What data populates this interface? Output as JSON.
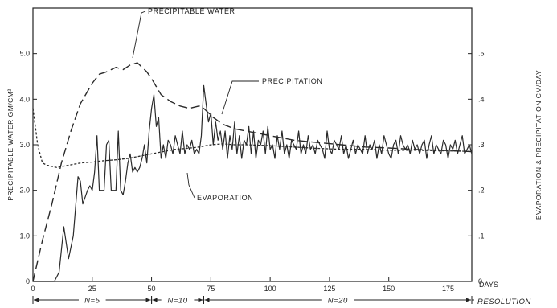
{
  "chart_data": {
    "type": "line",
    "title": "",
    "xlabel": "DAYS",
    "ylabel_left": "PRECIPITABLE WATER  GM/CM²",
    "ylabel_right": "EVAPORATION & PRECIPITATION  CM/DAY",
    "xlim": [
      0,
      185
    ],
    "ylim_left": [
      0,
      6.0
    ],
    "ylim_right": [
      0,
      0.6
    ],
    "x_ticks": [
      "0",
      "25",
      "50",
      "75",
      "100",
      "125",
      "150",
      "175"
    ],
    "y_left_ticks": [
      "0",
      "1.0",
      "2.0",
      "3.0",
      "4.0",
      "5.0"
    ],
    "y_right_ticks": [
      "0",
      ".1",
      ".2",
      ".3",
      ".4",
      ".5"
    ],
    "grid": false,
    "annotations": {
      "precipitable_water": "PRECIPITABLE WATER",
      "precipitation": "PRECIPITATION",
      "evaporation": "EVAPORATION"
    },
    "resolution": {
      "label": "RESOLUTION",
      "segments": [
        {
          "label": "N=5",
          "x_start": 0,
          "x_end": 50
        },
        {
          "label": "N=10",
          "x_start": 50,
          "x_end": 72
        },
        {
          "label": "N=20",
          "x_start": 72,
          "x_end": 185
        }
      ]
    },
    "series": [
      {
        "axis": "left",
        "style": "long-dash",
        "x": [
          0,
          4,
          8,
          12,
          16,
          20,
          25,
          28,
          31,
          35,
          38,
          41,
          44,
          46,
          48,
          50,
          54,
          58,
          62,
          66,
          70,
          72,
          76,
          80,
          85,
          90,
          100,
          110,
          120,
          130,
          140,
          150,
          160,
          170,
          180,
          185
        ],
        "values": [
          0,
          0.9,
          1.7,
          2.6,
          3.3,
          3.9,
          4.35,
          4.55,
          4.6,
          4.7,
          4.65,
          4.75,
          4.8,
          4.7,
          4.6,
          4.45,
          4.1,
          3.95,
          3.85,
          3.8,
          3.85,
          3.8,
          3.6,
          3.45,
          3.35,
          3.3,
          3.2,
          3.1,
          3.05,
          3.0,
          2.95,
          2.93,
          2.9,
          2.88,
          2.86,
          2.85
        ]
      },
      {
        "axis": "right",
        "style": "solid",
        "x": [
          0,
          9,
          11,
          13,
          15,
          17,
          19,
          20,
          21,
          23,
          24,
          25,
          26,
          27,
          28,
          29,
          30,
          31,
          32,
          33,
          34,
          35,
          36,
          37,
          38,
          39,
          40,
          41,
          42,
          43,
          44,
          45,
          46,
          47,
          48,
          49,
          50,
          51,
          52,
          53,
          54,
          55,
          56,
          57,
          58,
          59,
          60,
          61,
          62,
          63,
          64,
          65,
          66,
          67,
          68,
          69,
          70,
          71,
          72,
          73,
          74,
          75,
          76,
          77,
          78,
          79,
          80,
          81,
          82,
          83,
          84,
          85,
          86,
          87,
          88,
          89,
          90,
          91,
          92,
          93,
          94,
          95,
          96,
          97,
          98,
          99,
          100,
          101,
          102,
          103,
          104,
          105,
          106,
          107,
          108,
          109,
          110,
          111,
          112,
          113,
          114,
          115,
          116,
          117,
          118,
          119,
          120,
          121,
          122,
          123,
          124,
          125,
          126,
          127,
          128,
          129,
          130,
          131,
          132,
          133,
          134,
          135,
          136,
          137,
          138,
          139,
          140,
          141,
          142,
          143,
          144,
          145,
          146,
          147,
          148,
          149,
          150,
          151,
          152,
          153,
          154,
          155,
          156,
          157,
          158,
          159,
          160,
          161,
          162,
          163,
          164,
          165,
          166,
          167,
          168,
          169,
          170,
          171,
          172,
          173,
          174,
          175,
          176,
          177,
          178,
          179,
          180,
          181,
          182,
          183,
          184,
          185
        ],
        "values": [
          0,
          0,
          0.02,
          0.12,
          0.05,
          0.1,
          0.23,
          0.22,
          0.17,
          0.2,
          0.21,
          0.2,
          0.24,
          0.32,
          0.2,
          0.2,
          0.2,
          0.3,
          0.31,
          0.2,
          0.2,
          0.2,
          0.33,
          0.2,
          0.19,
          0.22,
          0.26,
          0.28,
          0.24,
          0.25,
          0.24,
          0.25,
          0.27,
          0.3,
          0.26,
          0.33,
          0.38,
          0.41,
          0.34,
          0.36,
          0.27,
          0.3,
          0.27,
          0.31,
          0.3,
          0.28,
          0.32,
          0.3,
          0.28,
          0.33,
          0.28,
          0.3,
          0.29,
          0.31,
          0.28,
          0.29,
          0.28,
          0.32,
          0.43,
          0.39,
          0.35,
          0.37,
          0.3,
          0.35,
          0.31,
          0.33,
          0.29,
          0.33,
          0.27,
          0.32,
          0.29,
          0.35,
          0.28,
          0.32,
          0.27,
          0.31,
          0.3,
          0.34,
          0.28,
          0.33,
          0.27,
          0.31,
          0.3,
          0.33,
          0.28,
          0.34,
          0.29,
          0.3,
          0.27,
          0.32,
          0.29,
          0.33,
          0.28,
          0.3,
          0.27,
          0.31,
          0.3,
          0.29,
          0.33,
          0.28,
          0.3,
          0.28,
          0.32,
          0.29,
          0.3,
          0.28,
          0.31,
          0.3,
          0.29,
          0.27,
          0.33,
          0.29,
          0.28,
          0.31,
          0.3,
          0.29,
          0.32,
          0.28,
          0.3,
          0.27,
          0.29,
          0.31,
          0.28,
          0.3,
          0.29,
          0.28,
          0.32,
          0.28,
          0.3,
          0.29,
          0.31,
          0.27,
          0.3,
          0.28,
          0.32,
          0.3,
          0.28,
          0.27,
          0.3,
          0.31,
          0.28,
          0.32,
          0.3,
          0.29,
          0.3,
          0.28,
          0.31,
          0.29,
          0.3,
          0.28,
          0.3,
          0.31,
          0.27,
          0.3,
          0.32,
          0.28,
          0.3,
          0.29,
          0.28,
          0.31,
          0.3,
          0.27,
          0.3,
          0.29,
          0.31,
          0.28,
          0.3,
          0.32,
          0.28,
          0.29,
          0.3,
          0.28
        ]
      },
      {
        "axis": "right",
        "style": "short-dash",
        "x": [
          0,
          2,
          4,
          6,
          10,
          15,
          20,
          25,
          30,
          35,
          40,
          45,
          50,
          55,
          60,
          65,
          70,
          75,
          80,
          85,
          90,
          100,
          110,
          120,
          130,
          140,
          150,
          160,
          170,
          180,
          185
        ],
        "values": [
          0.38,
          0.3,
          0.26,
          0.255,
          0.25,
          0.255,
          0.26,
          0.262,
          0.265,
          0.267,
          0.27,
          0.275,
          0.28,
          0.285,
          0.29,
          0.292,
          0.295,
          0.3,
          0.302,
          0.3,
          0.3,
          0.298,
          0.295,
          0.292,
          0.29,
          0.29,
          0.288,
          0.288,
          0.287,
          0.286,
          0.285
        ]
      }
    ]
  }
}
